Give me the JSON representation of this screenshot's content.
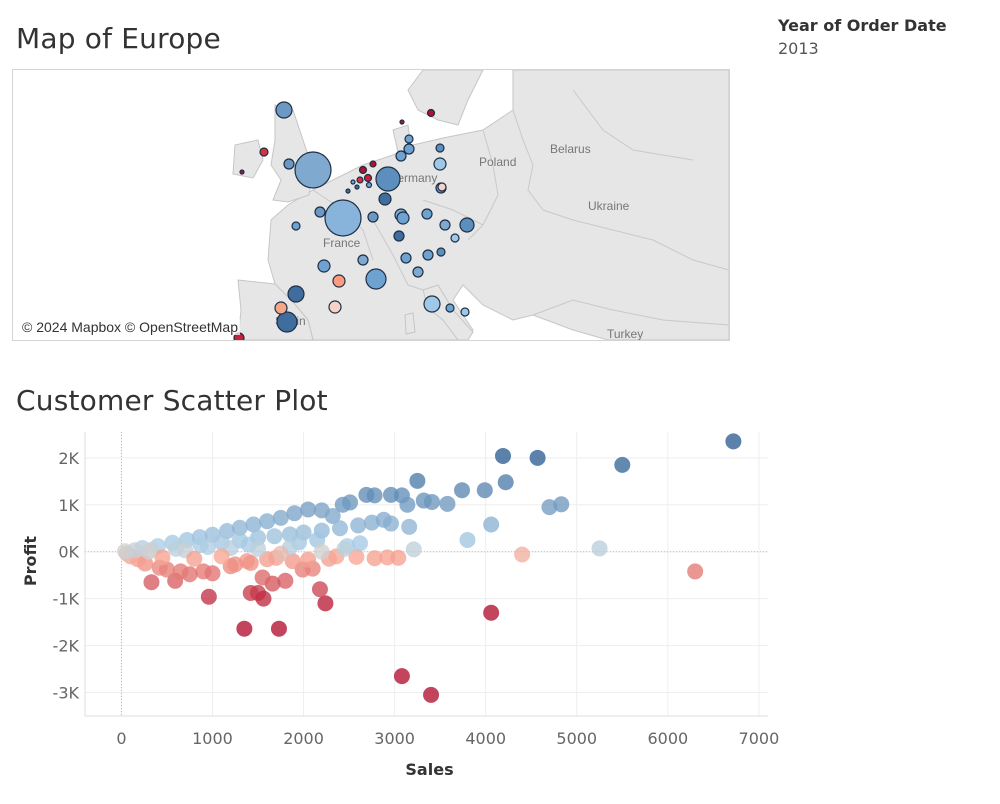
{
  "map_section": {
    "title": "Map of Europe",
    "attribution": "© 2024 Mapbox © OpenStreetMap",
    "country_labels": [
      {
        "name": "Poland"
      },
      {
        "name": "Belarus"
      },
      {
        "name": "Ukraine"
      },
      {
        "name": "France"
      },
      {
        "name": "Germany"
      },
      {
        "name": "Turkey"
      },
      {
        "name": "Spain"
      }
    ]
  },
  "filter": {
    "label": "Year of Order Date",
    "value": "2013"
  },
  "chart_data": {
    "type": "scatter",
    "title": "Customer Scatter Plot",
    "xlabel": "Sales",
    "ylabel": "Profit",
    "xlim": [
      -400,
      7100
    ],
    "ylim": [
      -3500,
      2550
    ],
    "x_ticks": [
      0,
      1000,
      2000,
      3000,
      4000,
      5000,
      6000,
      7000
    ],
    "y_ticks": [
      2000,
      1000,
      0,
      -1000,
      -2000,
      -3000
    ],
    "x_tick_labels": [
      "0",
      "1000",
      "2000",
      "3000",
      "4000",
      "5000",
      "6000",
      "7000"
    ],
    "y_tick_labels": [
      "2K",
      "1K",
      "0K",
      "-1K",
      "-2K",
      "-3K"
    ],
    "grid": true,
    "color_scale": {
      "negative": "#b2102f",
      "neutral": "#d0d0d0",
      "positive": "#2e5f94"
    },
    "points": [
      {
        "x": 6720,
        "y": 2350
      },
      {
        "x": 5500,
        "y": 1850
      },
      {
        "x": 4190,
        "y": 2040
      },
      {
        "x": 4570,
        "y": 2000
      },
      {
        "x": 4220,
        "y": 1480
      },
      {
        "x": 3990,
        "y": 1310
      },
      {
        "x": 3740,
        "y": 1310
      },
      {
        "x": 4830,
        "y": 1010
      },
      {
        "x": 4700,
        "y": 950
      },
      {
        "x": 3580,
        "y": 1020
      },
      {
        "x": 3250,
        "y": 1510
      },
      {
        "x": 3080,
        "y": 1200
      },
      {
        "x": 2960,
        "y": 1210
      },
      {
        "x": 2780,
        "y": 1200
      },
      {
        "x": 2690,
        "y": 1210
      },
      {
        "x": 2510,
        "y": 1050
      },
      {
        "x": 2430,
        "y": 1000
      },
      {
        "x": 3140,
        "y": 1000
      },
      {
        "x": 3320,
        "y": 1090
      },
      {
        "x": 3410,
        "y": 1060
      },
      {
        "x": 4060,
        "y": 580
      },
      {
        "x": 3800,
        "y": 250
      },
      {
        "x": 3160,
        "y": 530
      },
      {
        "x": 2960,
        "y": 600
      },
      {
        "x": 5250,
        "y": 70
      },
      {
        "x": 3210,
        "y": 50
      },
      {
        "x": 4400,
        "y": -60
      },
      {
        "x": 6300,
        "y": -420
      },
      {
        "x": 2580,
        "y": -110
      },
      {
        "x": 2780,
        "y": -140
      },
      {
        "x": 2920,
        "y": -120
      },
      {
        "x": 3040,
        "y": -130
      },
      {
        "x": 4060,
        "y": -1300
      },
      {
        "x": 3080,
        "y": -2650
      },
      {
        "x": 3400,
        "y": -3050
      },
      {
        "x": 2240,
        "y": -1100
      },
      {
        "x": 2180,
        "y": -800
      },
      {
        "x": 1730,
        "y": -1640
      },
      {
        "x": 1350,
        "y": -1640
      },
      {
        "x": 1420,
        "y": -880
      },
      {
        "x": 1500,
        "y": -880
      },
      {
        "x": 1560,
        "y": -1000
      },
      {
        "x": 960,
        "y": -960
      },
      {
        "x": 1800,
        "y": -620
      },
      {
        "x": 1660,
        "y": -680
      },
      {
        "x": 1550,
        "y": -550
      },
      {
        "x": 330,
        "y": -650
      },
      {
        "x": 590,
        "y": -620
      },
      {
        "x": 1990,
        "y": -380
      },
      {
        "x": 2100,
        "y": -360
      },
      {
        "x": 1880,
        "y": -200
      },
      {
        "x": 2050,
        "y": -170
      },
      {
        "x": 2280,
        "y": -150
      },
      {
        "x": 2360,
        "y": -100
      },
      {
        "x": 1380,
        "y": -200
      },
      {
        "x": 1420,
        "y": -240
      },
      {
        "x": 1600,
        "y": -160
      },
      {
        "x": 1700,
        "y": -130
      },
      {
        "x": 1200,
        "y": -310
      },
      {
        "x": 1250,
        "y": -270
      },
      {
        "x": 900,
        "y": -420
      },
      {
        "x": 1000,
        "y": -460
      },
      {
        "x": 750,
        "y": -480
      },
      {
        "x": 650,
        "y": -420
      },
      {
        "x": 500,
        "y": -380
      },
      {
        "x": 420,
        "y": -340
      },
      {
        "x": 260,
        "y": -250
      },
      {
        "x": 180,
        "y": -160
      },
      {
        "x": 100,
        "y": -100
      },
      {
        "x": 60,
        "y": -40
      },
      {
        "x": 40,
        "y": 10
      },
      {
        "x": 230,
        "y": 80
      },
      {
        "x": 400,
        "y": 120
      },
      {
        "x": 560,
        "y": 190
      },
      {
        "x": 720,
        "y": 250
      },
      {
        "x": 860,
        "y": 310
      },
      {
        "x": 1000,
        "y": 360
      },
      {
        "x": 1160,
        "y": 440
      },
      {
        "x": 1300,
        "y": 510
      },
      {
        "x": 1450,
        "y": 580
      },
      {
        "x": 1600,
        "y": 650
      },
      {
        "x": 1750,
        "y": 720
      },
      {
        "x": 1900,
        "y": 820
      },
      {
        "x": 2050,
        "y": 900
      },
      {
        "x": 2200,
        "y": 880
      },
      {
        "x": 2320,
        "y": 760
      },
      {
        "x": 330,
        "y": 40
      },
      {
        "x": 600,
        "y": 60
      },
      {
        "x": 870,
        "y": 140
      },
      {
        "x": 1100,
        "y": 200
      },
      {
        "x": 1300,
        "y": 240
      },
      {
        "x": 1500,
        "y": 300
      },
      {
        "x": 1680,
        "y": 330
      },
      {
        "x": 1850,
        "y": 370
      },
      {
        "x": 2000,
        "y": 410
      },
      {
        "x": 2200,
        "y": 450
      },
      {
        "x": 2400,
        "y": 500
      },
      {
        "x": 2600,
        "y": 560
      },
      {
        "x": 2750,
        "y": 620
      },
      {
        "x": 2880,
        "y": 680
      },
      {
        "x": 2480,
        "y": 120
      },
      {
        "x": 2620,
        "y": 180
      },
      {
        "x": 1200,
        "y": 80
      },
      {
        "x": 1400,
        "y": 150
      },
      {
        "x": 1950,
        "y": 200
      },
      {
        "x": 2150,
        "y": 250
      },
      {
        "x": 700,
        "y": 30
      },
      {
        "x": 950,
        "y": 100
      },
      {
        "x": 1850,
        "y": 90
      },
      {
        "x": 2200,
        "y": 0
      },
      {
        "x": 1750,
        "y": -40
      },
      {
        "x": 1100,
        "y": -100
      },
      {
        "x": 800,
        "y": -150
      },
      {
        "x": 450,
        "y": -120
      },
      {
        "x": 300,
        "y": 0
      },
      {
        "x": 150,
        "y": 30
      },
      {
        "x": 1500,
        "y": 60
      },
      {
        "x": 2450,
        "y": 60
      }
    ]
  }
}
